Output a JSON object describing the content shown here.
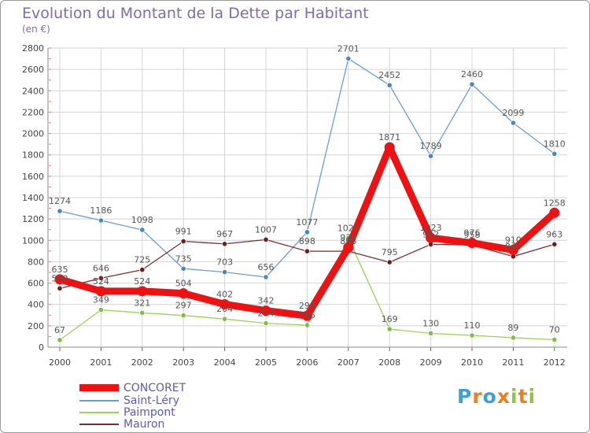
{
  "title": "Evolution du Montant de la Dette par Habitant",
  "subtitle": "(en €)",
  "logo": {
    "letters": [
      "P",
      "r",
      "o",
      "x",
      "i",
      "t",
      "i"
    ],
    "colors": [
      "#3aa0d8",
      "#f07d1e",
      "#3aa0d8",
      "#f07d1e",
      "#8cc63e",
      "#f07d1e",
      "#8cc63e"
    ]
  },
  "chart_data": {
    "type": "line",
    "title": "Evolution du Montant de la Dette par Habitant",
    "ylabel": "(en €)",
    "xlabel": "",
    "x": [
      "2000",
      "2001",
      "2002",
      "2003",
      "2004",
      "2005",
      "2006",
      "2007",
      "2008",
      "2009",
      "2010",
      "2011",
      "2012"
    ],
    "yticks": [
      "0",
      "200",
      "400",
      "600",
      "800",
      "1000",
      "1200",
      "1400",
      "1600",
      "1800",
      "2000",
      "2200",
      "2400",
      "2600",
      "2800"
    ],
    "ylim": [
      0,
      2800
    ],
    "grid": true,
    "legend_position": "bottom-left",
    "series": [
      {
        "name": "Saint-Léry",
        "color": "#6a9fd0",
        "marker": "#4a86c4",
        "values": [
          1274,
          1186,
          1098,
          735,
          703,
          656,
          1077,
          2701,
          2452,
          1789,
          2460,
          2099,
          1810
        ],
        "labels": [
          "1274",
          "1186",
          "1098",
          "735",
          "703",
          "656",
          "1077",
          "2701",
          "2452",
          "1789",
          "2460",
          "2099",
          "1810"
        ]
      },
      {
        "name": "Paimpont",
        "color": "#9ad25a",
        "marker": "#7ec040",
        "values": [
          67,
          349,
          321,
          297,
          264,
          224,
          206,
          1022,
          169,
          130,
          110,
          89,
          70
        ],
        "labels": [
          "67",
          "349",
          "321",
          "297",
          "264",
          "224",
          "206",
          "1022",
          "169",
          "130",
          "110",
          "89",
          "70"
        ]
      },
      {
        "name": "Mauron",
        "color": "#7a2e2e",
        "marker": "#6a1e1e",
        "values": [
          550,
          646,
          725,
          991,
          967,
          1007,
          898,
          898,
          795,
          962,
          958,
          849,
          963
        ],
        "labels": [
          "550",
          "646",
          "725",
          "991",
          "967",
          "1007",
          "898",
          "898",
          "795",
          "962",
          "958",
          "849",
          "963"
        ]
      },
      {
        "name": "CONCORET",
        "color": "#ee1111",
        "marker": "#ee1111",
        "values": [
          635,
          524,
          524,
          504,
          402,
          342,
          294,
          933,
          1871,
          1023,
          976,
          910,
          1258
        ],
        "labels": [
          "635",
          "524",
          "524",
          "504",
          "402",
          "342",
          "294",
          "933",
          "1871",
          "1023",
          "976",
          "910",
          "1258"
        ]
      }
    ]
  }
}
